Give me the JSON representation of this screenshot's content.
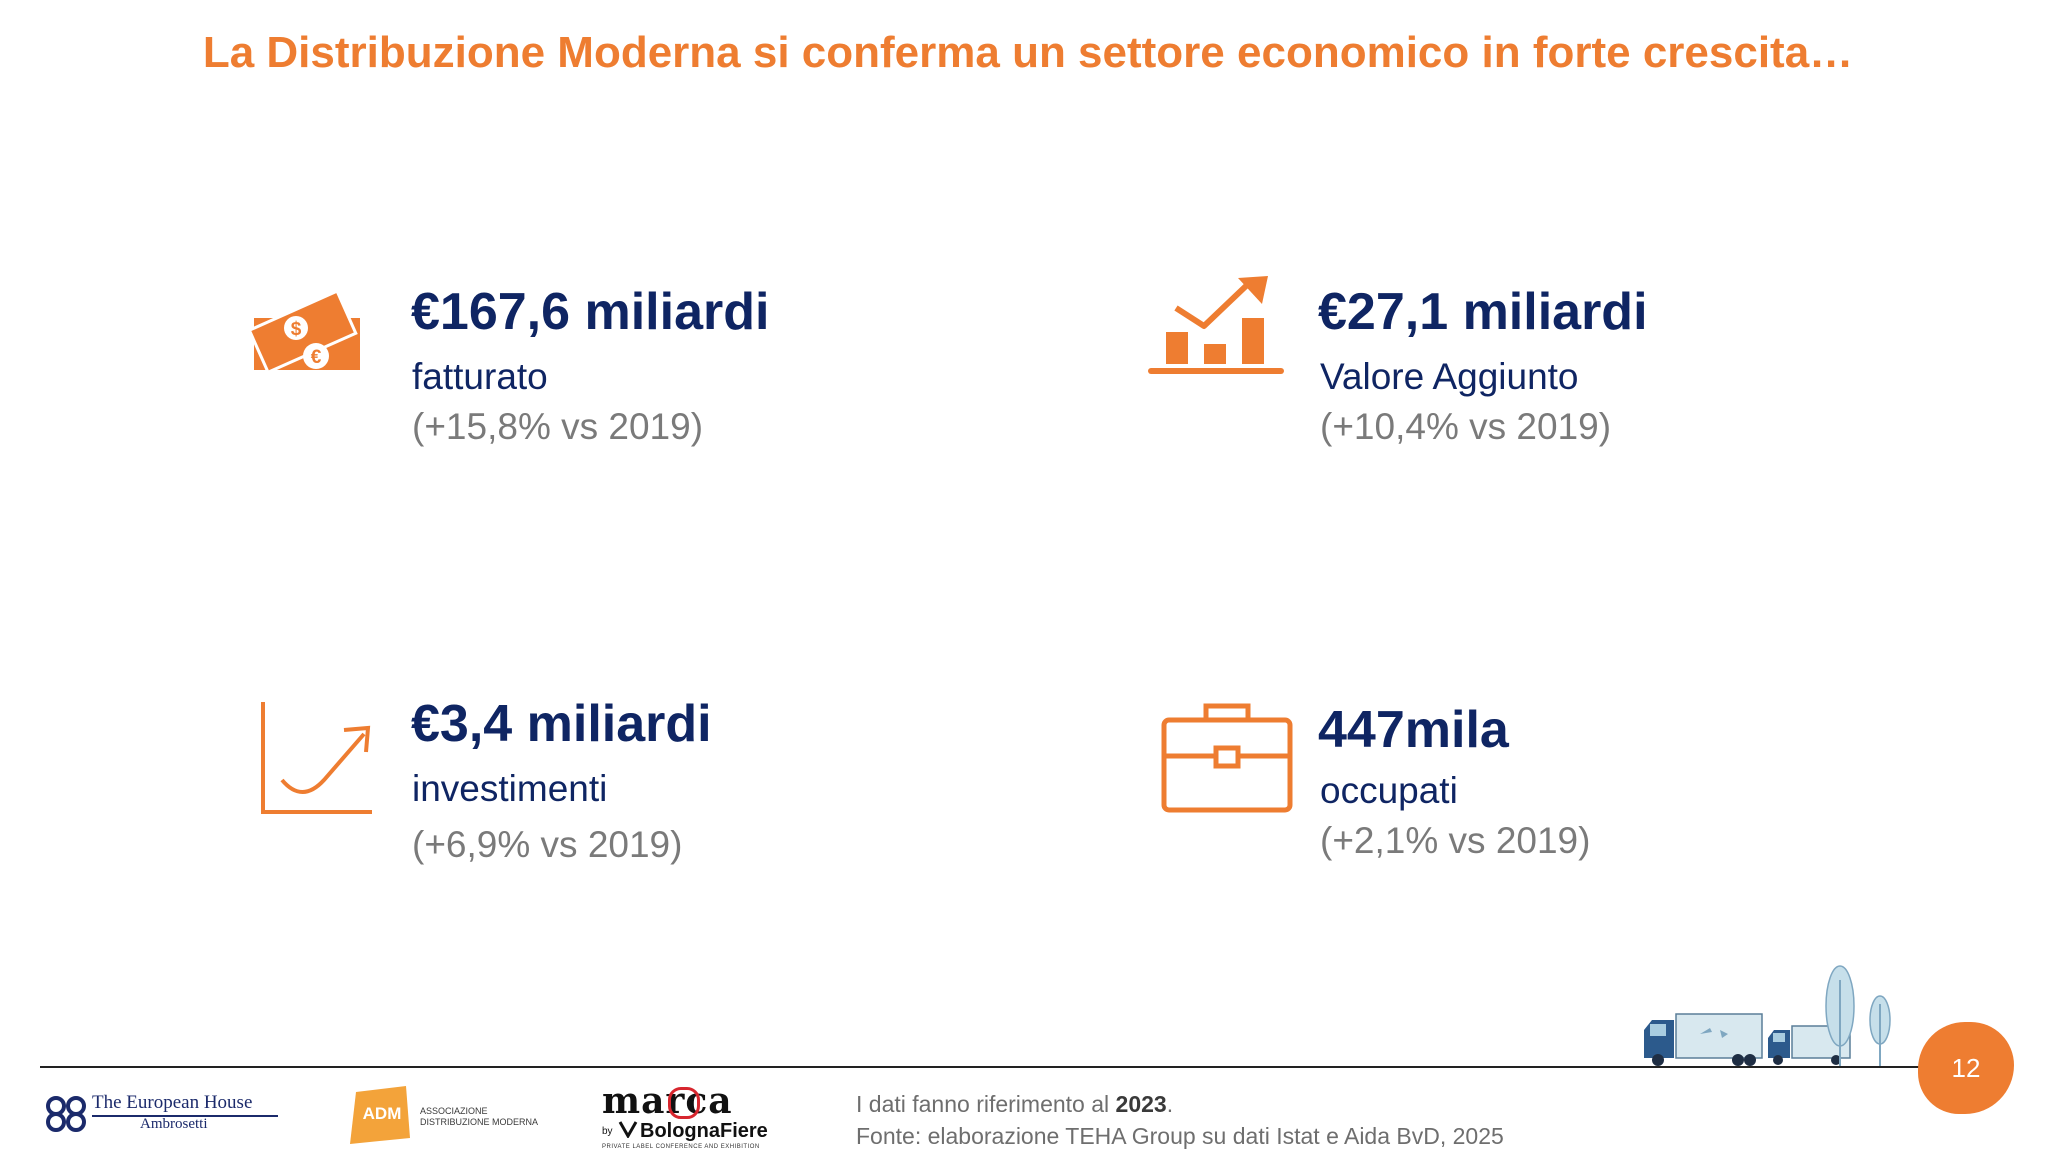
{
  "title": "La Distribuzione Moderna si conferma un settore economico in forte crescita…",
  "kpis": [
    {
      "icon": "money-icon",
      "value": "€167,6 miliardi",
      "label": "fatturato",
      "change": "(+15,8% vs 2019)"
    },
    {
      "icon": "bar-chart-growth-icon",
      "value": "€27,1 miliardi",
      "label": "Valore Aggiunto",
      "change": "(+10,4% vs 2019)"
    },
    {
      "icon": "line-chart-growth-icon",
      "value": "€3,4 miliardi",
      "label": "investimenti",
      "change": "(+6,9% vs 2019)"
    },
    {
      "icon": "briefcase-icon",
      "value": "447mila",
      "label": "occupati",
      "change": "(+2,1% vs 2019)"
    }
  ],
  "footer": {
    "note_prefix": "I dati fanno riferimento al ",
    "note_year": "2023",
    "note_suffix": ".",
    "source": "Fonte: elaborazione TEHA Group su dati Istat e Aida BvD, 2025",
    "page_number": "12",
    "logos": {
      "teha_line1": "The European House",
      "teha_line2": "Ambrosetti",
      "adm_mark": "ADM",
      "adm_line1": "ASSOCIAZIONE",
      "adm_line2": "DISTRIBUZIONE MODERNA",
      "marca_word": "marca",
      "marca_by": "by",
      "marca_bologna": "BolognaFiere",
      "marca_tagline": "PRIVATE LABEL CONFERENCE AND EXHIBITION"
    }
  },
  "colors": {
    "accent": "#EE7D31",
    "navy": "#0F2563",
    "grey": "#7A7A7A"
  }
}
